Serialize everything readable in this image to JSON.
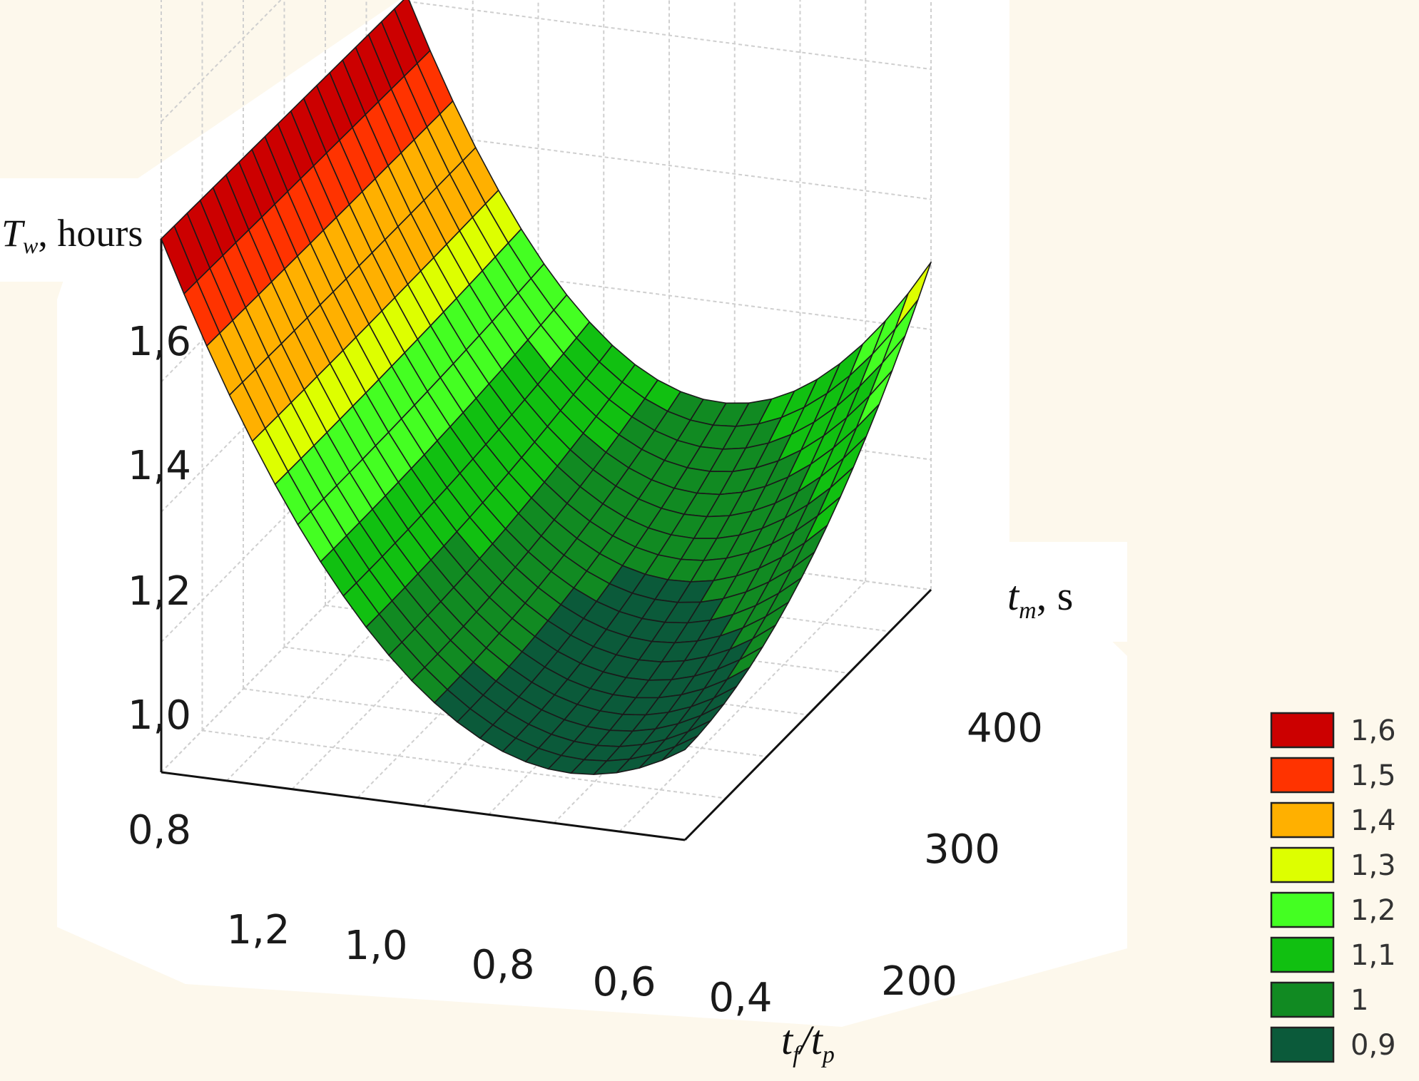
{
  "chart_data": {
    "type": "surface3d",
    "axes": {
      "z": {
        "label_main": "T",
        "label_sub": "w",
        "label_rest": ", hours",
        "ticks": [
          "1,6",
          "1,4",
          "1,2",
          "1,0",
          "0,8"
        ],
        "range": [
          0.8,
          1.6
        ]
      },
      "x": {
        "label_main": "t",
        "label_sub1": "f",
        "label_mid": "/t",
        "label_sub2": "p",
        "ticks": [
          "1,2",
          "1,0",
          "0,8",
          "0,6",
          "0,4"
        ],
        "range": [
          1.3,
          0.3
        ]
      },
      "y": {
        "label_main": "t",
        "label_sub": "m",
        "label_rest": ", s",
        "ticks": [
          "200",
          "300",
          "400"
        ],
        "range": [
          160,
          450
        ]
      }
    },
    "surface": {
      "grid_x_count": 23,
      "grid_y_count": 19,
      "corner_values": {
        "front_left": 1.62,
        "back_left": 1.6,
        "front_right": 0.95,
        "back_right": 1.22,
        "minimum": 0.88
      }
    },
    "legend": {
      "position": "bottom-right",
      "entries": [
        {
          "label": "1,6",
          "color": "#cc0000"
        },
        {
          "label": "1,5",
          "color": "#ff3300"
        },
        {
          "label": "1,4",
          "color": "#ffb000"
        },
        {
          "label": "1,3",
          "color": "#ddff00"
        },
        {
          "label": "1,2",
          "color": "#44ff22"
        },
        {
          "label": "1,1",
          "color": "#11c011"
        },
        {
          "label": "1",
          "color": "#118a22"
        },
        {
          "label": "0,9",
          "color": "#0b5a3a"
        }
      ]
    },
    "grid": true
  }
}
